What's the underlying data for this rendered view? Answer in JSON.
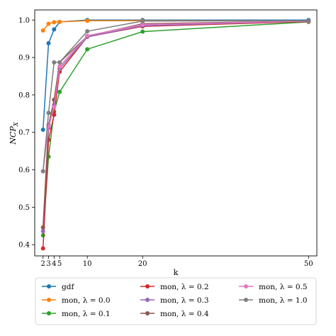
{
  "chart_data": {
    "type": "line",
    "title": "",
    "xlabel": "k",
    "ylabel": "NCP",
    "ylabel_sub": "X",
    "x": [
      2,
      3,
      4,
      5,
      10,
      20,
      50
    ],
    "xlim": [
      0.5,
      51.5
    ],
    "ylim": [
      0.37,
      1.027
    ],
    "xticks": [
      2,
      3,
      4,
      5,
      10,
      20,
      50
    ],
    "yticks": [
      0.4,
      0.5,
      0.6,
      0.7,
      0.8,
      0.9,
      1.0
    ],
    "ytick_labels": [
      "0.4",
      "0.5",
      "0.6",
      "0.7",
      "0.8",
      "0.9",
      "1.0"
    ],
    "grid": false,
    "legend_position": "bottom",
    "series": [
      {
        "name": "gdf",
        "color": "#1f77b4",
        "values": [
          0.707,
          0.938,
          0.975,
          0.995,
          1.0,
          1.0,
          1.0
        ]
      },
      {
        "name": "mon, λ = 0.0",
        "color": "#ff7f0e",
        "values": [
          0.972,
          0.99,
          0.994,
          0.995,
          0.998,
          0.998,
          0.998
        ]
      },
      {
        "name": "mon, λ = 0.1",
        "color": "#2ca02c",
        "values": [
          0.425,
          0.635,
          0.755,
          0.808,
          0.922,
          0.969,
          0.995
        ]
      },
      {
        "name": "mon, λ = 0.2",
        "color": "#d62728",
        "values": [
          0.39,
          0.68,
          0.747,
          0.862,
          0.955,
          0.983,
          0.996
        ]
      },
      {
        "name": "mon, λ = 0.3",
        "color": "#9467bd",
        "values": [
          0.436,
          0.712,
          0.772,
          0.87,
          0.955,
          0.985,
          0.997
        ]
      },
      {
        "name": "mon, λ = 0.4",
        "color": "#8c564b",
        "values": [
          0.446,
          0.72,
          0.787,
          0.887,
          0.957,
          0.99,
          0.997
        ]
      },
      {
        "name": "mon, λ = 0.5",
        "color": "#e377c2",
        "values": [
          0.596,
          0.717,
          0.768,
          0.876,
          0.958,
          0.988,
          0.997
        ]
      },
      {
        "name": "mon, λ = 1.0",
        "color": "#7f7f7f",
        "values": [
          0.596,
          0.752,
          0.887,
          0.887,
          0.97,
          0.997,
          0.998
        ]
      }
    ]
  }
}
